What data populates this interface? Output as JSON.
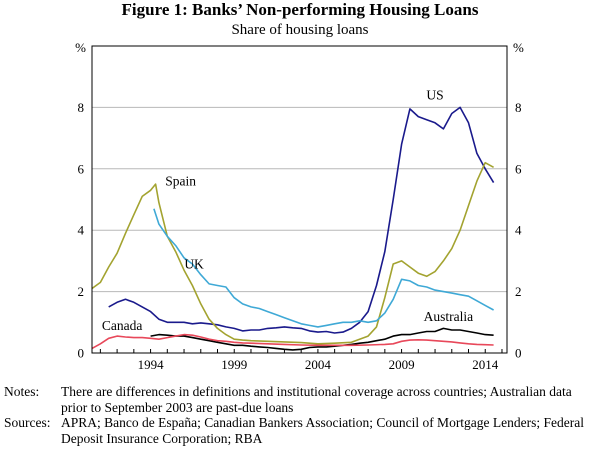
{
  "figure": {
    "title": "Figure 1: Banks’ Non-performing Housing Loans",
    "subtitle": "Share of housing loans"
  },
  "notes": {
    "notes_label": "Notes:",
    "notes_text": "There are differences in definitions and institutional coverage across countries; Australian data prior to September 2003 are past-due loans",
    "sources_label": "Sources:",
    "sources_text": "APRA; Banco de España; Canadian Bankers Association; Council of Mortgage Lenders; Federal Deposit Insurance Corporation; RBA"
  },
  "chart_data": {
    "type": "line",
    "title": "Figure 1: Banks’ Non-performing Housing Loans",
    "subtitle": "Share of housing loans",
    "y_unit_left": "%",
    "y_unit_right": "%",
    "ylim": [
      0,
      10
    ],
    "yticks": [
      0,
      2,
      4,
      6,
      8
    ],
    "xlim": [
      1990.5,
      2015.3
    ],
    "xticks": [
      1994,
      1999,
      2004,
      2009,
      2014
    ],
    "grid": true,
    "series": [
      {
        "name": "US",
        "color": "#1a1a8c",
        "points": [
          [
            1991.5,
            1.5
          ],
          [
            1992.0,
            1.65
          ],
          [
            1992.5,
            1.75
          ],
          [
            1993.0,
            1.65
          ],
          [
            1993.5,
            1.5
          ],
          [
            1994.0,
            1.35
          ],
          [
            1994.5,
            1.1
          ],
          [
            1995.0,
            1.0
          ],
          [
            1995.5,
            1.0
          ],
          [
            1996.0,
            1.0
          ],
          [
            1996.5,
            0.95
          ],
          [
            1997.0,
            0.98
          ],
          [
            1997.5,
            0.95
          ],
          [
            1998.0,
            0.92
          ],
          [
            1998.5,
            0.85
          ],
          [
            1999.0,
            0.8
          ],
          [
            1999.5,
            0.72
          ],
          [
            2000.0,
            0.75
          ],
          [
            2000.5,
            0.75
          ],
          [
            2001.0,
            0.8
          ],
          [
            2001.5,
            0.82
          ],
          [
            2002.0,
            0.85
          ],
          [
            2002.5,
            0.82
          ],
          [
            2003.0,
            0.8
          ],
          [
            2003.5,
            0.72
          ],
          [
            2004.0,
            0.68
          ],
          [
            2004.5,
            0.7
          ],
          [
            2005.0,
            0.65
          ],
          [
            2005.5,
            0.68
          ],
          [
            2006.0,
            0.8
          ],
          [
            2006.5,
            1.0
          ],
          [
            2007.0,
            1.35
          ],
          [
            2007.5,
            2.2
          ],
          [
            2008.0,
            3.3
          ],
          [
            2008.5,
            5.0
          ],
          [
            2009.0,
            6.8
          ],
          [
            2009.5,
            7.95
          ],
          [
            2010.0,
            7.7
          ],
          [
            2010.5,
            7.6
          ],
          [
            2011.0,
            7.5
          ],
          [
            2011.5,
            7.3
          ],
          [
            2012.0,
            7.8
          ],
          [
            2012.5,
            8.0
          ],
          [
            2013.0,
            7.5
          ],
          [
            2013.5,
            6.5
          ],
          [
            2014.0,
            6.0
          ],
          [
            2014.5,
            5.55
          ]
        ]
      },
      {
        "name": "Spain",
        "color": "#a3a330",
        "points": [
          [
            1990.5,
            2.1
          ],
          [
            1991.0,
            2.3
          ],
          [
            1991.5,
            2.8
          ],
          [
            1992.0,
            3.25
          ],
          [
            1992.5,
            3.9
          ],
          [
            1993.0,
            4.5
          ],
          [
            1993.5,
            5.1
          ],
          [
            1994.0,
            5.3
          ],
          [
            1994.3,
            5.5
          ],
          [
            1994.5,
            4.9
          ],
          [
            1995.0,
            3.8
          ],
          [
            1995.5,
            3.3
          ],
          [
            1996.0,
            2.7
          ],
          [
            1996.5,
            2.2
          ],
          [
            1997.0,
            1.6
          ],
          [
            1997.5,
            1.1
          ],
          [
            1998.0,
            0.8
          ],
          [
            1998.5,
            0.6
          ],
          [
            1999.0,
            0.45
          ],
          [
            1999.5,
            0.42
          ],
          [
            2000.0,
            0.4
          ],
          [
            2001.0,
            0.38
          ],
          [
            2002.0,
            0.36
          ],
          [
            2003.0,
            0.34
          ],
          [
            2004.0,
            0.3
          ],
          [
            2005.0,
            0.32
          ],
          [
            2006.0,
            0.35
          ],
          [
            2007.0,
            0.55
          ],
          [
            2007.5,
            0.85
          ],
          [
            2008.0,
            1.8
          ],
          [
            2008.5,
            2.9
          ],
          [
            2009.0,
            3.0
          ],
          [
            2009.5,
            2.8
          ],
          [
            2010.0,
            2.6
          ],
          [
            2010.5,
            2.5
          ],
          [
            2011.0,
            2.65
          ],
          [
            2011.5,
            3.0
          ],
          [
            2012.0,
            3.4
          ],
          [
            2012.5,
            4.0
          ],
          [
            2013.0,
            4.8
          ],
          [
            2013.5,
            5.6
          ],
          [
            2014.0,
            6.2
          ],
          [
            2014.5,
            6.05
          ]
        ]
      },
      {
        "name": "UK",
        "color": "#3fa9d6",
        "points": [
          [
            1994.2,
            4.7
          ],
          [
            1994.5,
            4.2
          ],
          [
            1995.0,
            3.8
          ],
          [
            1995.5,
            3.5
          ],
          [
            1996.0,
            3.1
          ],
          [
            1996.5,
            2.9
          ],
          [
            1997.0,
            2.55
          ],
          [
            1997.5,
            2.25
          ],
          [
            1998.0,
            2.2
          ],
          [
            1998.5,
            2.15
          ],
          [
            1999.0,
            1.8
          ],
          [
            1999.5,
            1.6
          ],
          [
            2000.0,
            1.5
          ],
          [
            2000.5,
            1.45
          ],
          [
            2001.0,
            1.35
          ],
          [
            2001.5,
            1.25
          ],
          [
            2002.0,
            1.15
          ],
          [
            2002.5,
            1.05
          ],
          [
            2003.0,
            0.95
          ],
          [
            2003.5,
            0.9
          ],
          [
            2004.0,
            0.85
          ],
          [
            2004.5,
            0.9
          ],
          [
            2005.0,
            0.95
          ],
          [
            2005.5,
            1.0
          ],
          [
            2006.0,
            1.0
          ],
          [
            2006.5,
            1.05
          ],
          [
            2007.0,
            1.0
          ],
          [
            2007.5,
            1.05
          ],
          [
            2008.0,
            1.3
          ],
          [
            2008.5,
            1.75
          ],
          [
            2009.0,
            2.4
          ],
          [
            2009.5,
            2.35
          ],
          [
            2010.0,
            2.2
          ],
          [
            2010.5,
            2.15
          ],
          [
            2011.0,
            2.05
          ],
          [
            2011.5,
            2.0
          ],
          [
            2012.0,
            1.95
          ],
          [
            2012.5,
            1.9
          ],
          [
            2013.0,
            1.85
          ],
          [
            2013.5,
            1.7
          ],
          [
            2014.0,
            1.55
          ],
          [
            2014.5,
            1.4
          ]
        ]
      },
      {
        "name": "Australia",
        "color": "#000000",
        "points": [
          [
            1994.0,
            0.55
          ],
          [
            1994.5,
            0.6
          ],
          [
            1995.0,
            0.58
          ],
          [
            1995.5,
            0.55
          ],
          [
            1996.0,
            0.55
          ],
          [
            1996.5,
            0.5
          ],
          [
            1997.0,
            0.45
          ],
          [
            1997.5,
            0.4
          ],
          [
            1998.0,
            0.35
          ],
          [
            1998.5,
            0.3
          ],
          [
            1999.0,
            0.25
          ],
          [
            1999.5,
            0.25
          ],
          [
            2000.0,
            0.22
          ],
          [
            2000.5,
            0.2
          ],
          [
            2001.0,
            0.18
          ],
          [
            2001.5,
            0.15
          ],
          [
            2002.0,
            0.12
          ],
          [
            2002.5,
            0.1
          ],
          [
            2003.0,
            0.12
          ],
          [
            2003.5,
            0.18
          ],
          [
            2004.0,
            0.2
          ],
          [
            2004.5,
            0.2
          ],
          [
            2005.0,
            0.22
          ],
          [
            2005.5,
            0.25
          ],
          [
            2006.0,
            0.28
          ],
          [
            2006.5,
            0.32
          ],
          [
            2007.0,
            0.35
          ],
          [
            2007.5,
            0.4
          ],
          [
            2008.0,
            0.45
          ],
          [
            2008.5,
            0.55
          ],
          [
            2009.0,
            0.6
          ],
          [
            2009.5,
            0.6
          ],
          [
            2010.0,
            0.65
          ],
          [
            2010.5,
            0.7
          ],
          [
            2011.0,
            0.7
          ],
          [
            2011.5,
            0.8
          ],
          [
            2012.0,
            0.75
          ],
          [
            2012.5,
            0.75
          ],
          [
            2013.0,
            0.7
          ],
          [
            2013.5,
            0.65
          ],
          [
            2014.0,
            0.6
          ],
          [
            2014.5,
            0.58
          ]
        ]
      },
      {
        "name": "Canada",
        "color": "#e8485a",
        "points": [
          [
            1990.5,
            0.15
          ],
          [
            1991.0,
            0.3
          ],
          [
            1991.5,
            0.48
          ],
          [
            1992.0,
            0.55
          ],
          [
            1992.5,
            0.52
          ],
          [
            1993.0,
            0.5
          ],
          [
            1993.5,
            0.5
          ],
          [
            1994.0,
            0.48
          ],
          [
            1994.5,
            0.45
          ],
          [
            1995.0,
            0.5
          ],
          [
            1995.5,
            0.55
          ],
          [
            1996.0,
            0.6
          ],
          [
            1996.5,
            0.58
          ],
          [
            1997.0,
            0.52
          ],
          [
            1997.5,
            0.45
          ],
          [
            1998.0,
            0.4
          ],
          [
            1998.5,
            0.38
          ],
          [
            1999.0,
            0.35
          ],
          [
            1999.5,
            0.33
          ],
          [
            2000.0,
            0.32
          ],
          [
            2001.0,
            0.3
          ],
          [
            2002.0,
            0.28
          ],
          [
            2003.0,
            0.26
          ],
          [
            2004.0,
            0.25
          ],
          [
            2005.0,
            0.25
          ],
          [
            2006.0,
            0.25
          ],
          [
            2007.0,
            0.26
          ],
          [
            2008.0,
            0.28
          ],
          [
            2008.5,
            0.3
          ],
          [
            2009.0,
            0.38
          ],
          [
            2009.5,
            0.42
          ],
          [
            2010.0,
            0.43
          ],
          [
            2010.5,
            0.42
          ],
          [
            2011.0,
            0.4
          ],
          [
            2011.5,
            0.38
          ],
          [
            2012.0,
            0.36
          ],
          [
            2012.5,
            0.33
          ],
          [
            2013.0,
            0.3
          ],
          [
            2013.5,
            0.28
          ],
          [
            2014.0,
            0.27
          ],
          [
            2014.5,
            0.26
          ]
        ]
      }
    ],
    "annotations": [
      {
        "text": "US",
        "series": "US",
        "x": 2011.0,
        "y": 8.25
      },
      {
        "text": "Spain",
        "series": "Spain",
        "x": 1995.8,
        "y": 5.45
      },
      {
        "text": "UK",
        "series": "UK",
        "x": 1996.6,
        "y": 2.75
      },
      {
        "text": "Australia",
        "series": "Australia",
        "x": 2011.8,
        "y": 1.05
      },
      {
        "text": "Canada",
        "series": "Canada",
        "x": 1992.3,
        "y": 0.75
      }
    ]
  }
}
